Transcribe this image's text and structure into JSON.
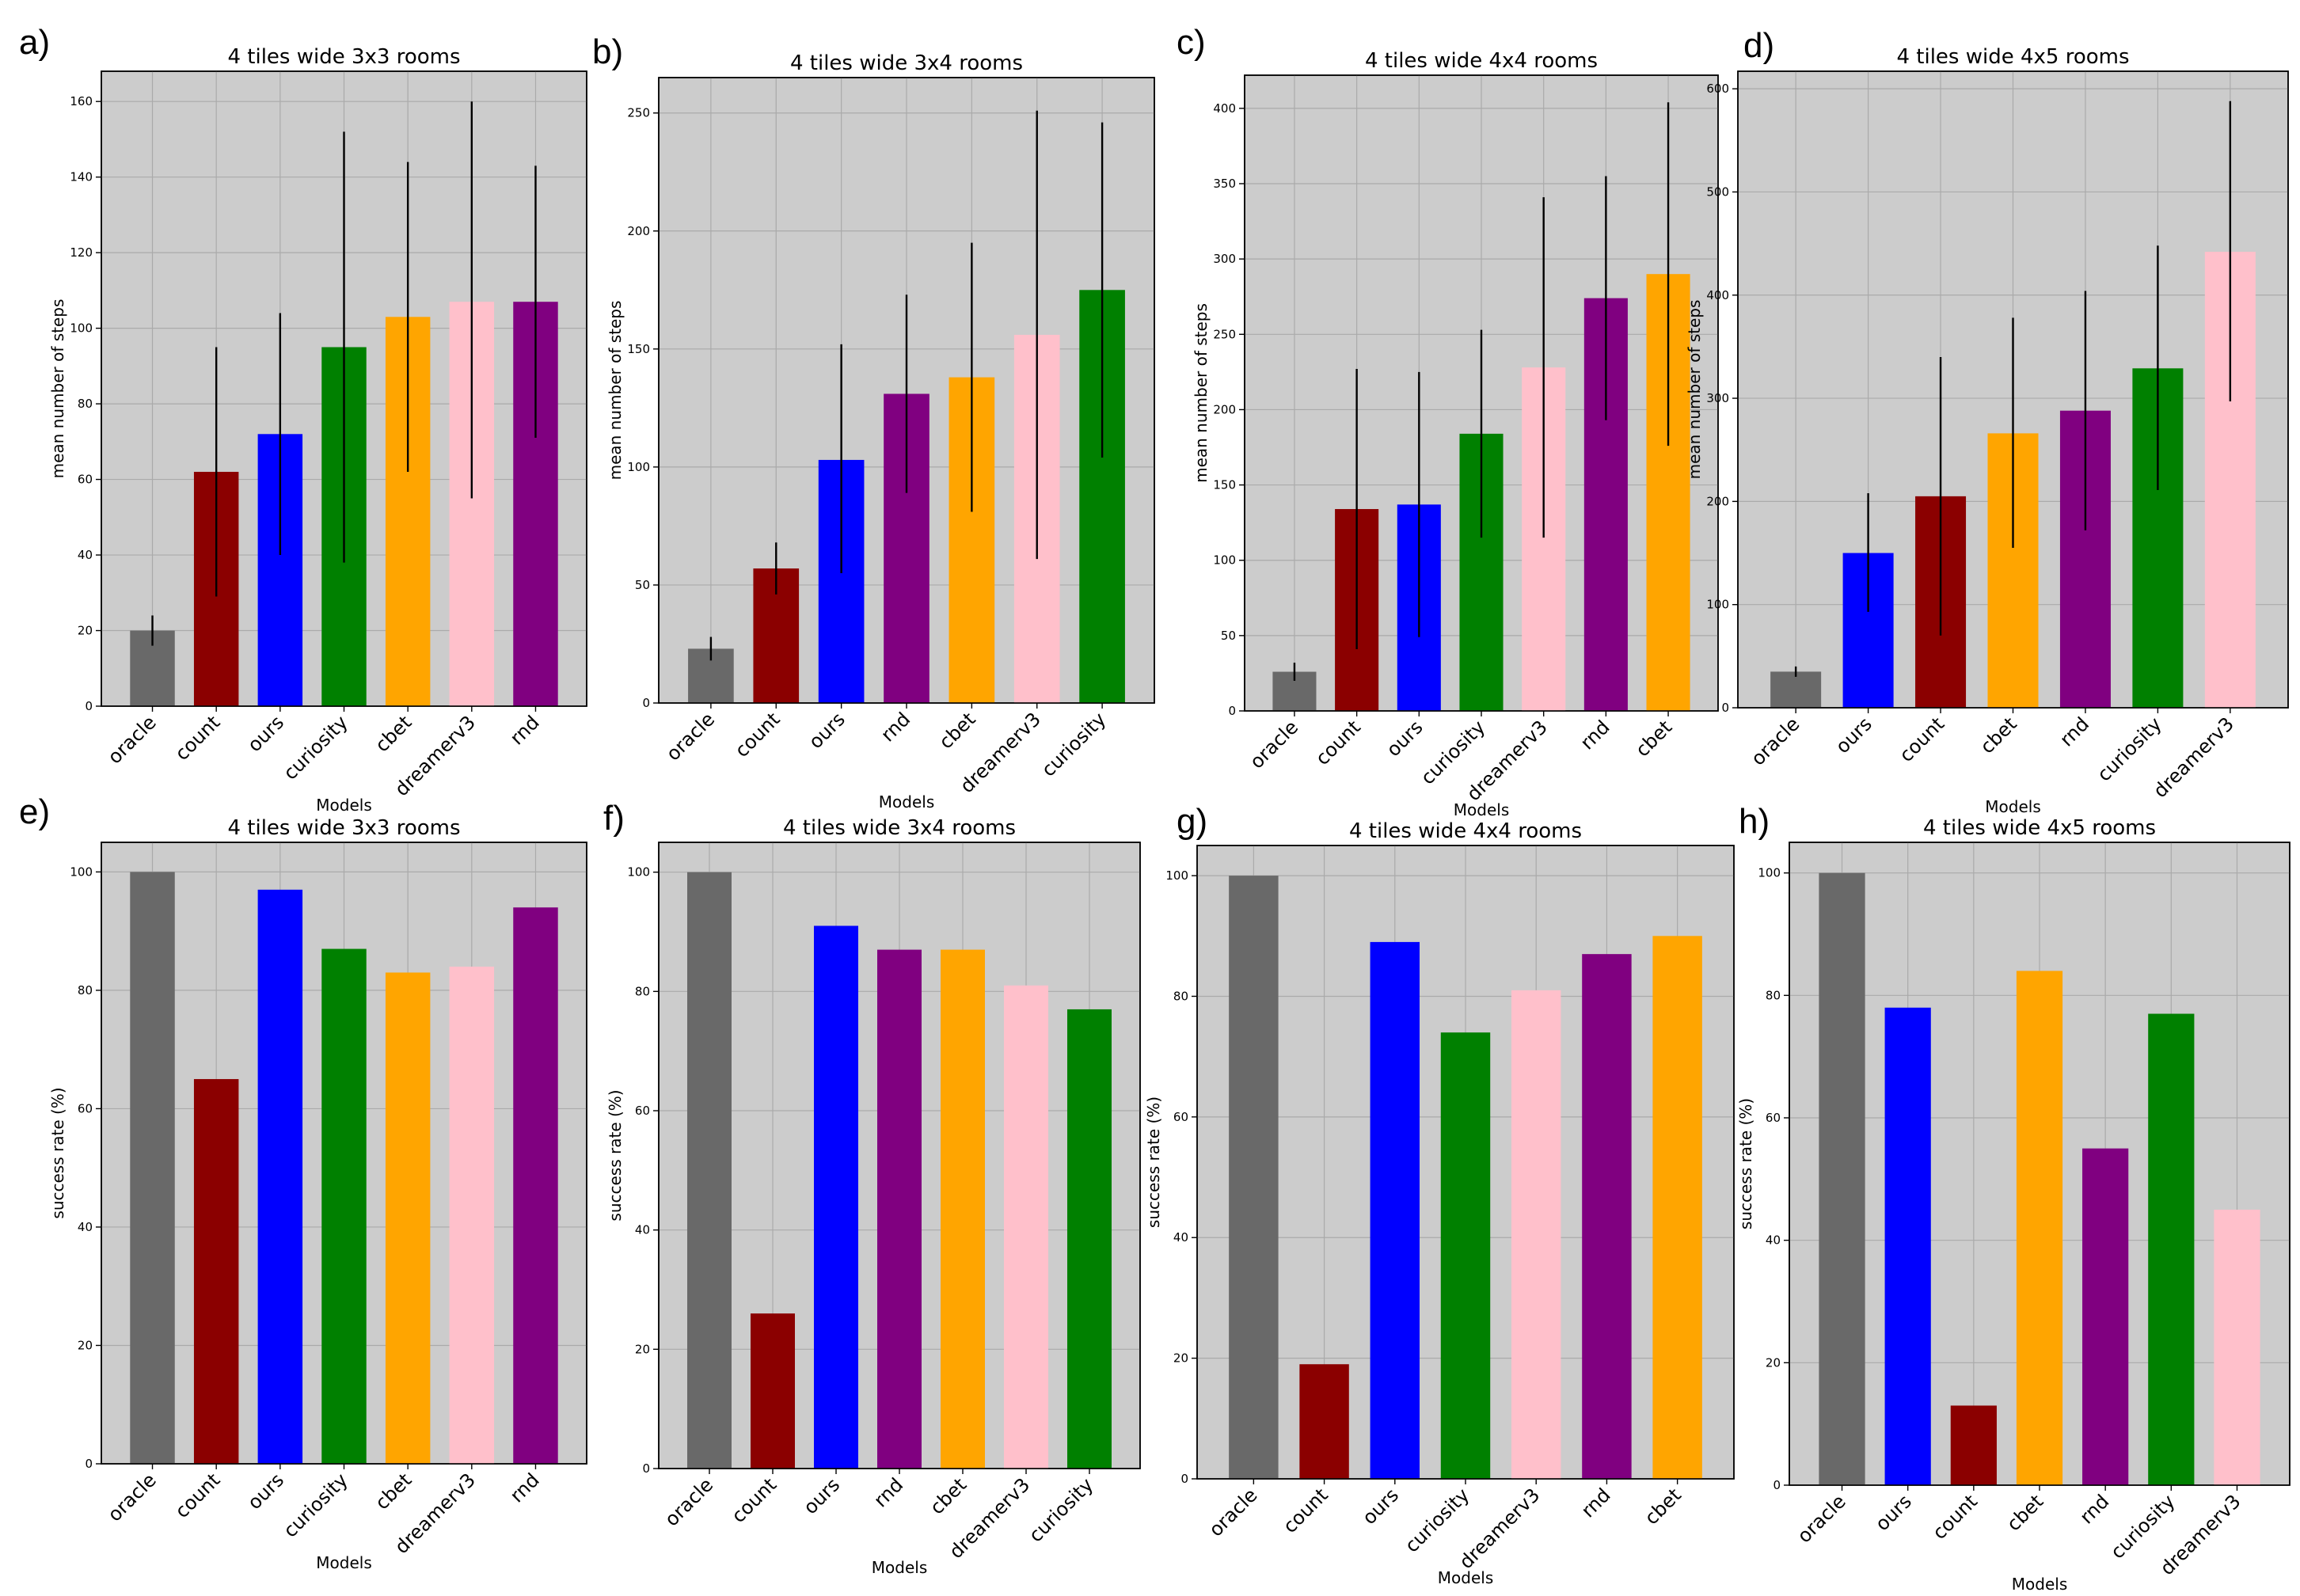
{
  "chart_data": [
    {
      "panel": "a)",
      "type": "bar",
      "title": "4 tiles wide 3x3 rooms",
      "xlabel": "Models",
      "ylabel": "mean number of steps",
      "ylim": [
        0,
        168
      ],
      "yticks": [
        0,
        20,
        40,
        60,
        80,
        100,
        120,
        140,
        160
      ],
      "categories": [
        "oracle",
        "count",
        "ours",
        "curiosity",
        "cbet",
        "dreamerv3",
        "rnd"
      ],
      "values": [
        20,
        62,
        72,
        95,
        103,
        107,
        107
      ],
      "err_low": [
        16,
        29,
        40,
        38,
        62,
        55,
        71
      ],
      "err_high": [
        24,
        95,
        104,
        152,
        144,
        160,
        143
      ],
      "colors": [
        "#696969",
        "#8b0000",
        "#0000ff",
        "#008000",
        "#ffa500",
        "#ffc0cb",
        "#800080"
      ]
    },
    {
      "panel": "b)",
      "type": "bar",
      "title": "4 tiles wide 3x4 rooms",
      "xlabel": "Models",
      "ylabel": "mean number of steps",
      "ylim": [
        0,
        265
      ],
      "yticks": [
        0,
        50,
        100,
        150,
        200,
        250
      ],
      "categories": [
        "oracle",
        "count",
        "ours",
        "rnd",
        "cbet",
        "dreamerv3",
        "curiosity"
      ],
      "values": [
        23,
        57,
        103,
        131,
        138,
        156,
        175
      ],
      "err_low": [
        18,
        46,
        55,
        89,
        81,
        61,
        104
      ],
      "err_high": [
        28,
        68,
        152,
        173,
        195,
        251,
        246
      ],
      "colors": [
        "#696969",
        "#8b0000",
        "#0000ff",
        "#800080",
        "#ffa500",
        "#ffc0cb",
        "#008000"
      ]
    },
    {
      "panel": "c)",
      "type": "bar",
      "title": "4 tiles wide 4x4 rooms",
      "xlabel": "Models",
      "ylabel": "mean number of steps",
      "ylim": [
        0,
        422
      ],
      "yticks": [
        0,
        50,
        100,
        150,
        200,
        250,
        300,
        350,
        400
      ],
      "categories": [
        "oracle",
        "count",
        "ours",
        "curiosity",
        "dreamerv3",
        "rnd",
        "cbet"
      ],
      "values": [
        26,
        134,
        137,
        184,
        228,
        274,
        290
      ],
      "err_low": [
        20,
        41,
        49,
        115,
        115,
        193,
        176
      ],
      "err_high": [
        32,
        227,
        225,
        253,
        341,
        355,
        404
      ],
      "colors": [
        "#696969",
        "#8b0000",
        "#0000ff",
        "#008000",
        "#ffc0cb",
        "#800080",
        "#ffa500"
      ]
    },
    {
      "panel": "d)",
      "type": "bar",
      "title": "4 tiles wide 4x5 rooms",
      "xlabel": "Models",
      "ylabel": "mean number of steps",
      "ylim": [
        0,
        617
      ],
      "yticks": [
        0,
        100,
        200,
        300,
        400,
        500,
        600
      ],
      "categories": [
        "oracle",
        "ours",
        "count",
        "cbet",
        "rnd",
        "curiosity",
        "dreamerv3"
      ],
      "values": [
        35,
        150,
        205,
        266,
        288,
        329,
        442
      ],
      "err_low": [
        30,
        93,
        70,
        155,
        172,
        211,
        297
      ],
      "err_high": [
        40,
        208,
        340,
        378,
        404,
        448,
        588
      ],
      "colors": [
        "#696969",
        "#0000ff",
        "#8b0000",
        "#ffa500",
        "#800080",
        "#008000",
        "#ffc0cb"
      ]
    },
    {
      "panel": "e)",
      "type": "bar",
      "title": "4 tiles wide 3x3 rooms",
      "xlabel": "Models",
      "ylabel": "success rate (%)",
      "ylim": [
        0,
        105
      ],
      "yticks": [
        0,
        20,
        40,
        60,
        80,
        100
      ],
      "categories": [
        "oracle",
        "count",
        "ours",
        "curiosity",
        "cbet",
        "dreamerv3",
        "rnd"
      ],
      "values": [
        100,
        65,
        97,
        87,
        83,
        84,
        94
      ],
      "colors": [
        "#696969",
        "#8b0000",
        "#0000ff",
        "#008000",
        "#ffa500",
        "#ffc0cb",
        "#800080"
      ]
    },
    {
      "panel": "f)",
      "type": "bar",
      "title": "4 tiles wide 3x4 rooms",
      "xlabel": "Models",
      "ylabel": "success rate (%)",
      "ylim": [
        0,
        105
      ],
      "yticks": [
        0,
        20,
        40,
        60,
        80,
        100
      ],
      "categories": [
        "oracle",
        "count",
        "ours",
        "rnd",
        "cbet",
        "dreamerv3",
        "curiosity"
      ],
      "values": [
        100,
        26,
        91,
        87,
        87,
        81,
        77
      ],
      "colors": [
        "#696969",
        "#8b0000",
        "#0000ff",
        "#800080",
        "#ffa500",
        "#ffc0cb",
        "#008000"
      ]
    },
    {
      "panel": "g)",
      "type": "bar",
      "title": "4 tiles wide 4x4 rooms",
      "xlabel": "Models",
      "ylabel": "success rate (%)",
      "ylim": [
        0,
        105
      ],
      "yticks": [
        0,
        20,
        40,
        60,
        80,
        100
      ],
      "categories": [
        "oracle",
        "count",
        "ours",
        "curiosity",
        "dreamerv3",
        "rnd",
        "cbet"
      ],
      "values": [
        100,
        19,
        89,
        74,
        81,
        87,
        90
      ],
      "colors": [
        "#696969",
        "#8b0000",
        "#0000ff",
        "#008000",
        "#ffc0cb",
        "#800080",
        "#ffa500"
      ]
    },
    {
      "panel": "h)",
      "type": "bar",
      "title": "4 tiles wide 4x5 rooms",
      "xlabel": "Models",
      "ylabel": "success rate (%)",
      "ylim": [
        0,
        105
      ],
      "yticks": [
        0,
        20,
        40,
        60,
        80,
        100
      ],
      "categories": [
        "oracle",
        "ours",
        "count",
        "cbet",
        "rnd",
        "curiosity",
        "dreamerv3"
      ],
      "values": [
        100,
        78,
        13,
        84,
        55,
        77,
        45
      ],
      "colors": [
        "#696969",
        "#0000ff",
        "#8b0000",
        "#ffa500",
        "#800080",
        "#008000",
        "#ffc0cb"
      ]
    }
  ]
}
